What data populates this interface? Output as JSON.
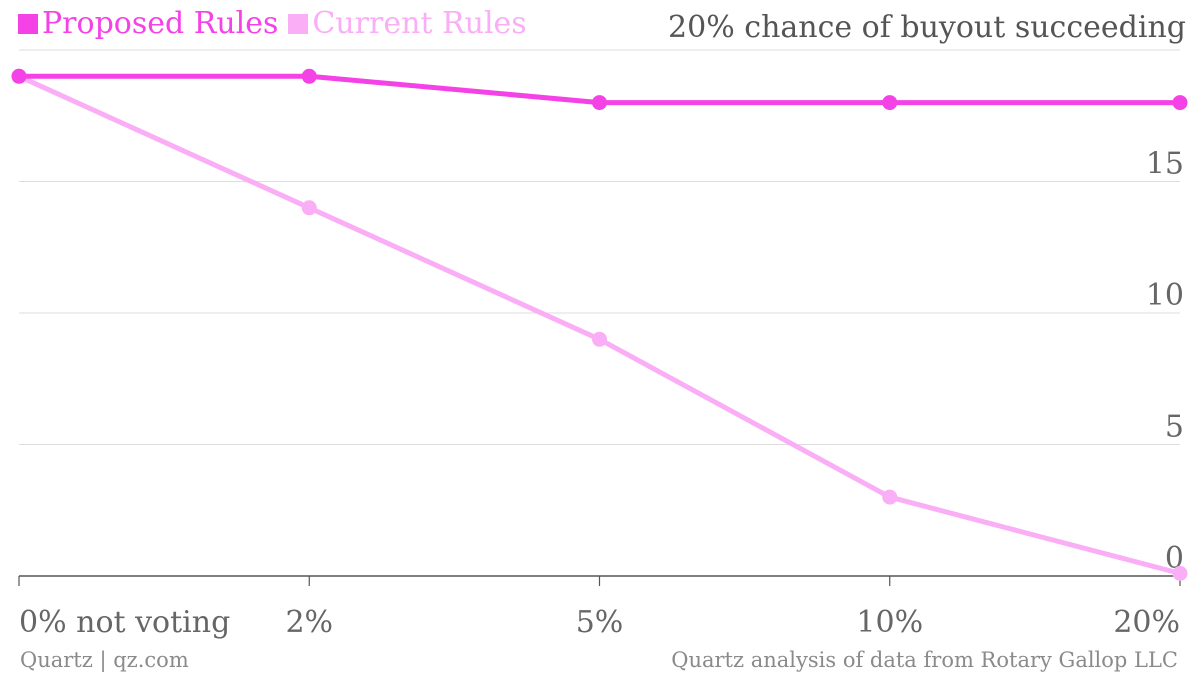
{
  "chart_data": {
    "type": "line",
    "title": "20% chance of buyout succeeding",
    "categories": [
      "0% not voting",
      "2%",
      "5%",
      "10%",
      "20%"
    ],
    "series": [
      {
        "name": "Proposed Rules",
        "color": "#f542e6",
        "values": [
          19,
          19,
          18,
          18,
          18
        ]
      },
      {
        "name": "Current Rules",
        "color": "#f9aef5",
        "values": [
          19,
          14,
          9,
          3,
          0.1
        ]
      }
    ],
    "y_ticks": [
      "0",
      "5",
      "10",
      "15"
    ],
    "ylim": [
      0,
      20
    ],
    "grid": true,
    "legend_position": "top-left",
    "y_axis_position": "right"
  },
  "footer": {
    "left": "Quartz | qz.com",
    "right": "Quartz analysis of data from Rotary Gallop LLC"
  }
}
